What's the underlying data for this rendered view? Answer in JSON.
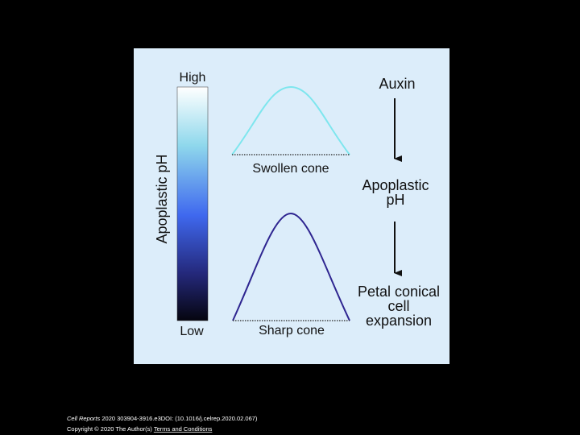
{
  "axis": {
    "label": "Apoplastic pH",
    "high": "High",
    "low": "Low"
  },
  "cones": [
    {
      "label": "Swollen cone"
    },
    {
      "label": "Sharp cone"
    }
  ],
  "flow": [
    {
      "lines": [
        "Auxin"
      ]
    },
    {
      "lines": [
        "Apoplastic",
        "pH"
      ]
    },
    {
      "lines": [
        "Petal conical",
        "cell",
        "expansion"
      ]
    }
  ],
  "footer": {
    "journal": "Cell Reports",
    "citation": "2020 303904-3916.e3DOI: (10.1016/j.celrep.2020.02.067)",
    "copyright": "Copyright © 2020 The Author(s)",
    "link": "Terms and Conditions"
  }
}
